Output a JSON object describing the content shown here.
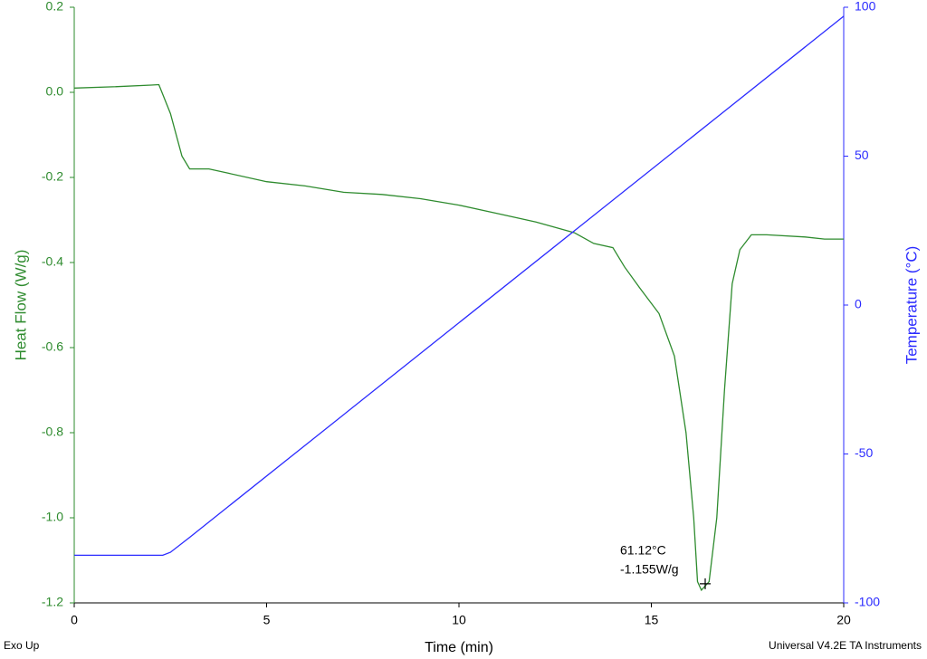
{
  "chart_data": {
    "type": "line",
    "xlabel": "Time (min)",
    "ylabel": "Heat Flow (W/g)",
    "y2label": "Temperature (°C)",
    "xlim": [
      0,
      20
    ],
    "xticks": [
      0,
      5,
      10,
      15,
      20
    ],
    "ylim": [
      -1.2,
      0.2
    ],
    "yticks": [
      {
        "value": -1.2,
        "label": "-1.2"
      },
      {
        "value": -1.0,
        "label": "-1.0"
      },
      -0.8,
      -0.6,
      -0.4,
      -0.2,
      {
        "value": 0,
        "label": "0.0"
      },
      0.2
    ],
    "y2lim": [
      -100,
      100
    ],
    "y2ticks": [
      -100,
      -50,
      0,
      50,
      100
    ],
    "series": [
      {
        "color": "#2e8b2e",
        "axis": "y",
        "x": [
          0,
          1,
          2,
          2.2,
          2.5,
          2.8,
          3.0,
          3.5,
          4,
          5,
          6,
          7,
          8,
          9,
          10,
          11,
          12,
          13,
          13.5,
          14,
          14.3,
          14.7,
          15.2,
          15.6,
          15.9,
          16.1,
          16.2,
          16.3,
          16.5,
          16.7,
          16.9,
          17.1,
          17.3,
          17.6,
          18,
          19,
          19.5,
          20
        ],
        "values": [
          0.01,
          0.013,
          0.017,
          0.018,
          -0.05,
          -0.15,
          -0.18,
          -0.18,
          -0.19,
          -0.21,
          -0.22,
          -0.235,
          -0.24,
          -0.25,
          -0.265,
          -0.285,
          -0.305,
          -0.33,
          -0.355,
          -0.365,
          -0.41,
          -0.46,
          -0.52,
          -0.62,
          -0.8,
          -1.0,
          -1.15,
          -1.17,
          -1.15,
          -1.0,
          -0.7,
          -0.45,
          -0.37,
          -0.335,
          -0.335,
          -0.34,
          -0.345,
          -0.345
        ]
      },
      {
        "color": "#2b2bff",
        "axis": "y2",
        "x": [
          0,
          2.3,
          2.5,
          3,
          20
        ],
        "values": [
          -84,
          -84,
          -83,
          -78,
          97
        ]
      }
    ],
    "annotation": {
      "lines": [
        "61.12°C",
        "-1.155W/g"
      ],
      "x": 16.4,
      "y": -1.155
    },
    "footer_left": "Exo Up",
    "footer_right": "Universal V4.2E TA Instruments"
  }
}
